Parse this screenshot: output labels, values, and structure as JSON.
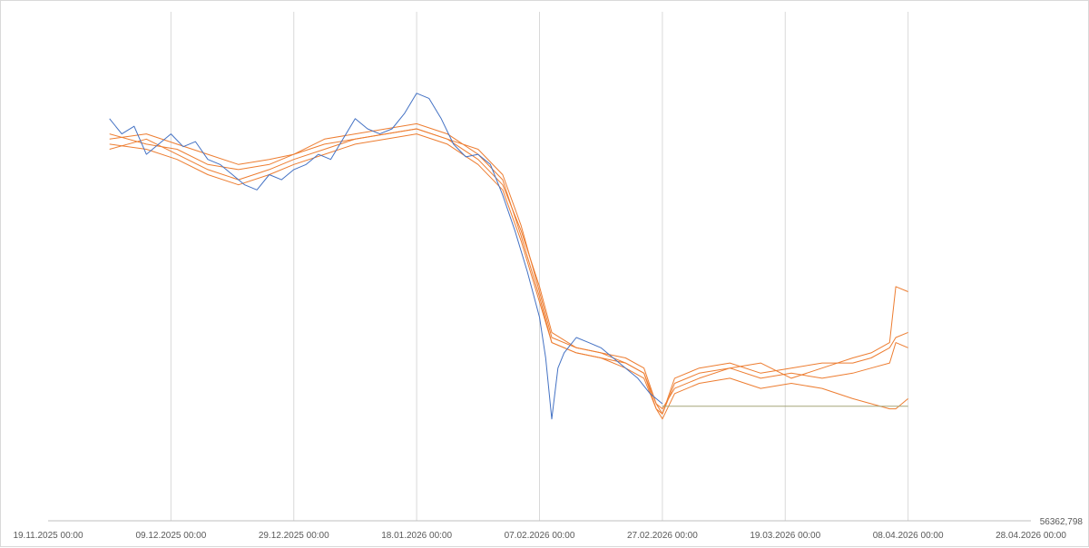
{
  "chart_data": {
    "type": "line",
    "title": "",
    "xlabel": "",
    "ylabel": "",
    "x_ticks": [
      "19.11.2025 00:00",
      "09.12.2025 00:00",
      "29.12.2025 00:00",
      "18.01.2026 00:00",
      "07.02.2026 00:00",
      "27.02.2026 00:00",
      "19.03.2026 00:00",
      "08.04.2026 00:00",
      "28.04.2026 00:00"
    ],
    "y_axis_corner_label": "56362,798",
    "y_tick_labels_visible": false,
    "grid": {
      "vertical": true,
      "horizontal": false
    },
    "legend": "none",
    "xlim": [
      "2025-11-19",
      "2026-04-28"
    ],
    "ylim": [
      0,
      100
    ],
    "series": [
      {
        "color": "#4472c4",
        "points": [
          [
            "2025-11-29",
            79
          ],
          [
            "2025-12-01",
            76
          ],
          [
            "2025-12-03",
            77.5
          ],
          [
            "2025-12-05",
            72
          ],
          [
            "2025-12-07",
            74
          ],
          [
            "2025-12-09",
            76
          ],
          [
            "2025-12-11",
            73.5
          ],
          [
            "2025-12-13",
            74.5
          ],
          [
            "2025-12-15",
            71
          ],
          [
            "2025-12-17",
            70
          ],
          [
            "2025-12-19",
            68
          ],
          [
            "2025-12-21",
            66
          ],
          [
            "2025-12-23",
            65
          ],
          [
            "2025-12-25",
            68
          ],
          [
            "2025-12-27",
            67
          ],
          [
            "2025-12-29",
            69
          ],
          [
            "2025-12-31",
            70
          ],
          [
            "2026-01-02",
            72
          ],
          [
            "2026-01-04",
            71
          ],
          [
            "2026-01-06",
            75
          ],
          [
            "2026-01-08",
            79
          ],
          [
            "2026-01-10",
            77
          ],
          [
            "2026-01-12",
            76
          ],
          [
            "2026-01-14",
            77
          ],
          [
            "2026-01-16",
            80
          ],
          [
            "2026-01-18",
            84
          ],
          [
            "2026-01-20",
            83
          ],
          [
            "2026-01-22",
            79
          ],
          [
            "2026-01-24",
            74
          ],
          [
            "2026-01-26",
            71.5
          ],
          [
            "2026-01-28",
            72
          ],
          [
            "2026-01-30",
            70
          ],
          [
            "2026-02-01",
            64
          ],
          [
            "2026-02-03",
            57
          ],
          [
            "2026-02-05",
            49
          ],
          [
            "2026-02-07",
            40
          ],
          [
            "2026-02-08",
            32
          ],
          [
            "2026-02-09",
            20
          ],
          [
            "2026-02-10",
            30
          ],
          [
            "2026-02-11",
            33
          ],
          [
            "2026-02-13",
            36
          ],
          [
            "2026-02-15",
            35
          ],
          [
            "2026-02-17",
            34
          ],
          [
            "2026-02-19",
            32
          ],
          [
            "2026-02-21",
            30
          ],
          [
            "2026-02-23",
            28
          ],
          [
            "2026-02-25",
            25
          ],
          [
            "2026-02-27",
            23
          ]
        ]
      },
      {
        "color": "#ed7d31",
        "points": [
          [
            "2025-11-29",
            75
          ],
          [
            "2025-12-05",
            76
          ],
          [
            "2025-12-10",
            74
          ],
          [
            "2025-12-15",
            72
          ],
          [
            "2025-12-20",
            70
          ],
          [
            "2025-12-25",
            71
          ],
          [
            "2025-12-29",
            72
          ],
          [
            "2026-01-03",
            74
          ],
          [
            "2026-01-08",
            75
          ],
          [
            "2026-01-13",
            76
          ],
          [
            "2026-01-18",
            77
          ],
          [
            "2026-01-23",
            75
          ],
          [
            "2026-01-28",
            73
          ],
          [
            "2026-02-01",
            68
          ],
          [
            "2026-02-04",
            58
          ],
          [
            "2026-02-07",
            45
          ],
          [
            "2026-02-09",
            36
          ],
          [
            "2026-02-13",
            34
          ],
          [
            "2026-02-17",
            33
          ],
          [
            "2026-02-21",
            32
          ],
          [
            "2026-02-24",
            30
          ],
          [
            "2026-02-26",
            23
          ],
          [
            "2026-02-27",
            21
          ],
          [
            "2026-03-01",
            27
          ],
          [
            "2026-03-05",
            29
          ],
          [
            "2026-03-10",
            30
          ],
          [
            "2026-03-15",
            31
          ],
          [
            "2026-03-20",
            28
          ],
          [
            "2026-03-25",
            30
          ],
          [
            "2026-03-30",
            32
          ],
          [
            "2026-04-02",
            33
          ],
          [
            "2026-04-05",
            35
          ],
          [
            "2026-04-06",
            46
          ],
          [
            "2026-04-08",
            45
          ]
        ]
      },
      {
        "color": "#ed7d31",
        "points": [
          [
            "2025-11-29",
            76
          ],
          [
            "2025-12-05",
            74
          ],
          [
            "2025-12-10",
            73
          ],
          [
            "2025-12-15",
            70
          ],
          [
            "2025-12-20",
            69
          ],
          [
            "2025-12-25",
            70
          ],
          [
            "2025-12-29",
            72
          ],
          [
            "2026-01-03",
            75
          ],
          [
            "2026-01-08",
            76
          ],
          [
            "2026-01-13",
            77
          ],
          [
            "2026-01-18",
            78
          ],
          [
            "2026-01-23",
            76
          ],
          [
            "2026-01-28",
            72
          ],
          [
            "2026-02-01",
            67
          ],
          [
            "2026-02-04",
            56
          ],
          [
            "2026-02-07",
            44
          ],
          [
            "2026-02-09",
            35
          ],
          [
            "2026-02-13",
            33
          ],
          [
            "2026-02-17",
            32
          ],
          [
            "2026-02-21",
            31
          ],
          [
            "2026-02-24",
            29
          ],
          [
            "2026-02-26",
            22
          ],
          [
            "2026-02-27",
            21
          ],
          [
            "2026-03-01",
            28
          ],
          [
            "2026-03-05",
            30
          ],
          [
            "2026-03-10",
            31
          ],
          [
            "2026-03-15",
            29
          ],
          [
            "2026-03-20",
            30
          ],
          [
            "2026-03-25",
            31
          ],
          [
            "2026-03-30",
            31
          ],
          [
            "2026-04-02",
            32
          ],
          [
            "2026-04-05",
            34
          ],
          [
            "2026-04-06",
            36
          ],
          [
            "2026-04-08",
            37
          ]
        ]
      },
      {
        "color": "#ed7d31",
        "points": [
          [
            "2025-11-29",
            73
          ],
          [
            "2025-12-05",
            75
          ],
          [
            "2025-12-10",
            72
          ],
          [
            "2025-12-15",
            69
          ],
          [
            "2025-12-20",
            67
          ],
          [
            "2025-12-25",
            69
          ],
          [
            "2025-12-29",
            71
          ],
          [
            "2026-01-03",
            73
          ],
          [
            "2026-01-08",
            75
          ],
          [
            "2026-01-13",
            76
          ],
          [
            "2026-01-18",
            77
          ],
          [
            "2026-01-23",
            75
          ],
          [
            "2026-01-28",
            71
          ],
          [
            "2026-02-01",
            66
          ],
          [
            "2026-02-04",
            57
          ],
          [
            "2026-02-07",
            46
          ],
          [
            "2026-02-09",
            37
          ],
          [
            "2026-02-13",
            34
          ],
          [
            "2026-02-17",
            33
          ],
          [
            "2026-02-21",
            31
          ],
          [
            "2026-02-24",
            29
          ],
          [
            "2026-02-26",
            23
          ],
          [
            "2026-02-27",
            22
          ],
          [
            "2026-03-01",
            26
          ],
          [
            "2026-03-05",
            28
          ],
          [
            "2026-03-10",
            30
          ],
          [
            "2026-03-15",
            28
          ],
          [
            "2026-03-20",
            29
          ],
          [
            "2026-03-25",
            28
          ],
          [
            "2026-03-30",
            29
          ],
          [
            "2026-04-02",
            30
          ],
          [
            "2026-04-05",
            31
          ],
          [
            "2026-04-06",
            35
          ],
          [
            "2026-04-08",
            34
          ]
        ]
      },
      {
        "color": "#ed7d31",
        "points": [
          [
            "2025-11-29",
            74
          ],
          [
            "2025-12-05",
            73
          ],
          [
            "2025-12-10",
            71
          ],
          [
            "2025-12-15",
            68
          ],
          [
            "2025-12-20",
            66
          ],
          [
            "2025-12-25",
            68
          ],
          [
            "2025-12-29",
            70
          ],
          [
            "2026-01-03",
            72
          ],
          [
            "2026-01-08",
            74
          ],
          [
            "2026-01-13",
            75
          ],
          [
            "2026-01-18",
            76
          ],
          [
            "2026-01-23",
            74
          ],
          [
            "2026-01-28",
            70
          ],
          [
            "2026-02-01",
            65
          ],
          [
            "2026-02-04",
            55
          ],
          [
            "2026-02-07",
            43
          ],
          [
            "2026-02-09",
            35
          ],
          [
            "2026-02-13",
            33
          ],
          [
            "2026-02-17",
            32
          ],
          [
            "2026-02-21",
            30
          ],
          [
            "2026-02-24",
            28
          ],
          [
            "2026-02-26",
            22
          ],
          [
            "2026-02-27",
            20
          ],
          [
            "2026-03-01",
            25
          ],
          [
            "2026-03-05",
            27
          ],
          [
            "2026-03-10",
            28
          ],
          [
            "2026-03-15",
            26
          ],
          [
            "2026-03-20",
            27
          ],
          [
            "2026-03-25",
            26
          ],
          [
            "2026-03-30",
            24
          ],
          [
            "2026-04-02",
            23
          ],
          [
            "2026-04-05",
            22
          ],
          [
            "2026-04-06",
            22
          ],
          [
            "2026-04-08",
            24
          ]
        ]
      },
      {
        "color": "#a5a578",
        "points": [
          [
            "2026-02-27",
            22.5
          ],
          [
            "2026-04-08",
            22.5
          ]
        ]
      }
    ]
  }
}
